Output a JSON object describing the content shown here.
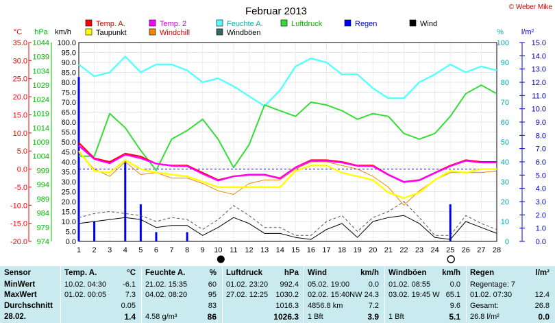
{
  "title": "Februar 2013",
  "copyright": "© Weber Mike",
  "legend": [
    {
      "label": "Temp. A.",
      "color": "#ff0000"
    },
    {
      "label": "Temp. 2",
      "color": "#ff00ff"
    },
    {
      "label": "Feuchte A.",
      "color": "#55ffff"
    },
    {
      "label": "Luftdruck",
      "color": "#33dd33"
    },
    {
      "label": "Regen",
      "color": "#0000ee"
    },
    {
      "label": "Wind",
      "color": "#000000"
    },
    {
      "label": "Taupunkt",
      "color": "#ffff00"
    },
    {
      "label": "Windchill",
      "color": "#ee8800"
    },
    {
      "label": "Windböen",
      "color": "#336666"
    }
  ],
  "axis_units": {
    "temp": "°C",
    "pressure": "hPa",
    "wind": "km/h",
    "humidity": "%",
    "rain": "l/m²"
  },
  "chart_data": {
    "type": "line",
    "x": [
      1,
      2,
      3,
      4,
      5,
      6,
      7,
      8,
      9,
      10,
      11,
      12,
      13,
      14,
      15,
      16,
      17,
      18,
      19,
      20,
      21,
      22,
      23,
      24,
      25,
      26,
      27,
      28
    ],
    "x_ticks": [
      "1",
      "2",
      "3",
      "4",
      "5",
      "6",
      "7",
      "8",
      "9",
      "10",
      "11",
      "12",
      "13",
      "14",
      "15",
      "16",
      "17",
      "18",
      "19",
      "20",
      "21",
      "22",
      "23",
      "24",
      "25",
      "26",
      "27",
      "28"
    ],
    "axes": {
      "temp": {
        "min": -20,
        "max": 35,
        "ticks": [
          "35.0",
          "30.0",
          "25.0",
          "20.0",
          "15.0",
          "10.0",
          "5.0",
          "0.0",
          "-5.0",
          "-10.0",
          "-15.0",
          "-20.0"
        ],
        "color": "#ff0000"
      },
      "pressure": {
        "min": 974,
        "max": 1044,
        "ticks": [
          "1044",
          "1039",
          "1034",
          "1029",
          "1024",
          "1019",
          "1014",
          "1009",
          "1004",
          "999",
          "994",
          "989",
          "984",
          "979",
          "974"
        ],
        "color": "#00bb00"
      },
      "wind": {
        "min": 0,
        "max": 100,
        "ticks": [
          "100.0",
          "95.0",
          "90.0",
          "85.0",
          "80.0",
          "75.0",
          "70.0",
          "65.0",
          "60.0",
          "55.0",
          "50.0",
          "45.0",
          "40.0",
          "35.0",
          "30.0",
          "25.0",
          "20.0",
          "15.0",
          "10.0",
          "5.0",
          "0.0"
        ],
        "color": "#000000"
      },
      "humidity": {
        "min": 0,
        "max": 100,
        "ticks": [
          "100",
          "90",
          "80",
          "70",
          "60",
          "50",
          "40",
          "30",
          "20",
          "10",
          "0"
        ],
        "color": "#00aaaa"
      },
      "rain": {
        "min": 0,
        "max": 15,
        "ticks": [
          "15.0",
          "14.0",
          "13.0",
          "12.0",
          "11.0",
          "10.0",
          "9.0",
          "8.0",
          "7.0",
          "6.0",
          "5.0",
          "4.0",
          "3.0",
          "2.0",
          "1.0",
          "0.0"
        ],
        "color": "#0000cc"
      }
    },
    "series": [
      {
        "name": "Feuchte A.",
        "axis": "humidity",
        "color": "#55ffff",
        "width": 2.4,
        "values": [
          89,
          83,
          85,
          93,
          85,
          89,
          89,
          86,
          80,
          82,
          78,
          73,
          68,
          76,
          88,
          92,
          90,
          84,
          84,
          77,
          72,
          72,
          80,
          84,
          89,
          85,
          88,
          86
        ]
      },
      {
        "name": "Luftdruck",
        "axis": "pressure",
        "color": "#33dd33",
        "width": 2,
        "values": [
          1004,
          1004,
          1019,
          1014,
          1006,
          999,
          1010,
          1013,
          1017,
          1010,
          1000,
          1008,
          1022,
          1020,
          1018,
          1023,
          1022,
          1020,
          1017,
          1019,
          1018,
          1012,
          1010,
          1012,
          1018,
          1026,
          1029,
          1026
        ]
      },
      {
        "name": "Windböen",
        "axis": "wind",
        "color": "#555555",
        "width": 1,
        "dash": "4,3",
        "values": [
          12,
          14,
          15,
          14,
          13,
          10,
          12,
          11,
          6,
          11,
          18,
          13,
          7,
          7,
          3,
          3,
          10,
          13,
          5,
          12,
          15,
          20,
          12,
          3,
          3,
          13,
          9,
          6
        ]
      },
      {
        "name": "Wind",
        "axis": "wind",
        "color": "#000000",
        "width": 1,
        "values": [
          9,
          10,
          11,
          12,
          11,
          7,
          8,
          8,
          3,
          7,
          12,
          9,
          4,
          4,
          2,
          1,
          6,
          9,
          2,
          10,
          12,
          13,
          9,
          2,
          1,
          10,
          7,
          4
        ]
      },
      {
        "name": "Windchill",
        "axis": "temp",
        "color": "#ee8800",
        "width": 1,
        "values": [
          4.5,
          0,
          -2,
          2,
          -1.5,
          -1,
          -2.5,
          -2.5,
          -4,
          -6,
          -7,
          -4,
          -3,
          -3,
          0,
          2,
          2,
          1,
          0,
          -2,
          -5,
          -10,
          -6,
          -3,
          -1,
          -1,
          -1,
          -0.5
        ]
      },
      {
        "name": "Taupunkt",
        "axis": "temp",
        "color": "#ffff00",
        "width": 2.4,
        "values": [
          5,
          -0.5,
          -1,
          2.5,
          0,
          -1,
          -1.5,
          -2,
          -3.5,
          -5,
          -5,
          -5,
          -5,
          -5,
          -0.5,
          1,
          1,
          -1,
          -2,
          -3,
          -6.5,
          -8,
          -6.5,
          -3,
          -0.5,
          -1,
          0,
          0
        ]
      },
      {
        "name": "Temp. A.",
        "axis": "temp",
        "color": "#ff0000",
        "width": 2,
        "values": [
          7.3,
          3,
          2,
          4.3,
          3.5,
          1.5,
          1,
          1,
          -1,
          -3,
          -2,
          -1.5,
          -1.5,
          -2.5,
          0.5,
          2.5,
          2.5,
          2,
          1,
          1,
          -1.5,
          -3.5,
          -3,
          -1,
          1,
          2.5,
          2,
          2
        ]
      },
      {
        "name": "Temp. 2",
        "axis": "temp",
        "color": "#ff00ff",
        "width": 2.4,
        "values": [
          6.5,
          2.8,
          1.6,
          4,
          3,
          1.5,
          0.9,
          0.8,
          -1.3,
          -3.2,
          -2,
          -1.6,
          -1.6,
          -2.6,
          0.4,
          2.3,
          2.3,
          1.8,
          0.9,
          0.8,
          -1.6,
          -3.6,
          -3.1,
          -1.1,
          0.8,
          2.3,
          1.8,
          1.8
        ]
      }
    ],
    "rain": {
      "name": "Regen",
      "axis": "rain",
      "color": "#0000ee",
      "values": [
        12.4,
        1.5,
        0,
        6.1,
        2.8,
        0.7,
        0,
        0.7,
        0,
        0,
        0,
        0,
        0,
        0,
        0,
        0,
        0,
        0,
        0,
        0,
        0,
        0,
        0,
        0,
        2.8,
        0,
        0,
        0
      ]
    },
    "reference_line": {
      "axis": "temp",
      "value": 0,
      "color": "#0000aa"
    },
    "moon_markers": [
      {
        "day": 10,
        "phase": "new"
      },
      {
        "day": 25,
        "phase": "full"
      }
    ]
  },
  "stats": {
    "rows": [
      "MinWert",
      "MaxWert",
      "Durchschnitt",
      "28.02."
    ],
    "sensor_label": "Sensor",
    "temp": {
      "header": "Temp. A.",
      "unit": "°C",
      "cells": [
        [
          "10.02.  04:30",
          "-6.1"
        ],
        [
          "01.02.  00:05",
          "7.3"
        ],
        [
          "",
          "0.05"
        ],
        [
          "",
          "1.4"
        ]
      ]
    },
    "humidity": {
      "header": "Feuchte A.",
      "unit": "%",
      "cells": [
        [
          "21.02.  15:35",
          "60"
        ],
        [
          "04.02.  08:20",
          "95"
        ],
        [
          "",
          "83"
        ],
        [
          "4.58 g/m³",
          "86"
        ]
      ]
    },
    "pressure": {
      "header": "Luftdruck",
      "unit": "hPa",
      "cells": [
        [
          "01.02.  23:20",
          "992.4"
        ],
        [
          "27.02.  12:25",
          "1030.2"
        ],
        [
          "",
          "1016.3"
        ],
        [
          "",
          "1026.3"
        ]
      ]
    },
    "wind": {
      "header": "Wind",
      "unit": "km/h",
      "cells": [
        [
          "05.02.  19:00",
          "0.0"
        ],
        [
          "02.02.  15:40NW",
          "24.3"
        ],
        [
          "4856.8 km",
          "7.2"
        ],
        [
          "1 Bft",
          "3.9"
        ]
      ]
    },
    "gust": {
      "header": "Windböen",
      "unit": "km/h",
      "cells": [
        [
          "01.02.  08:55",
          "0.0"
        ],
        [
          "03.02.  19:45  W",
          "65.1"
        ],
        [
          "",
          "9.6"
        ],
        [
          "1 Bft",
          "5.1"
        ]
      ]
    },
    "rain": {
      "header": "Regen",
      "unit": "l/m²",
      "cells": [
        [
          "Regentage: 7",
          ""
        ],
        [
          "01.02.  07:30",
          "12.4"
        ],
        [
          "Gesamt:",
          "26.8"
        ],
        [
          "26.8 l/m²",
          "0.0"
        ]
      ]
    }
  }
}
